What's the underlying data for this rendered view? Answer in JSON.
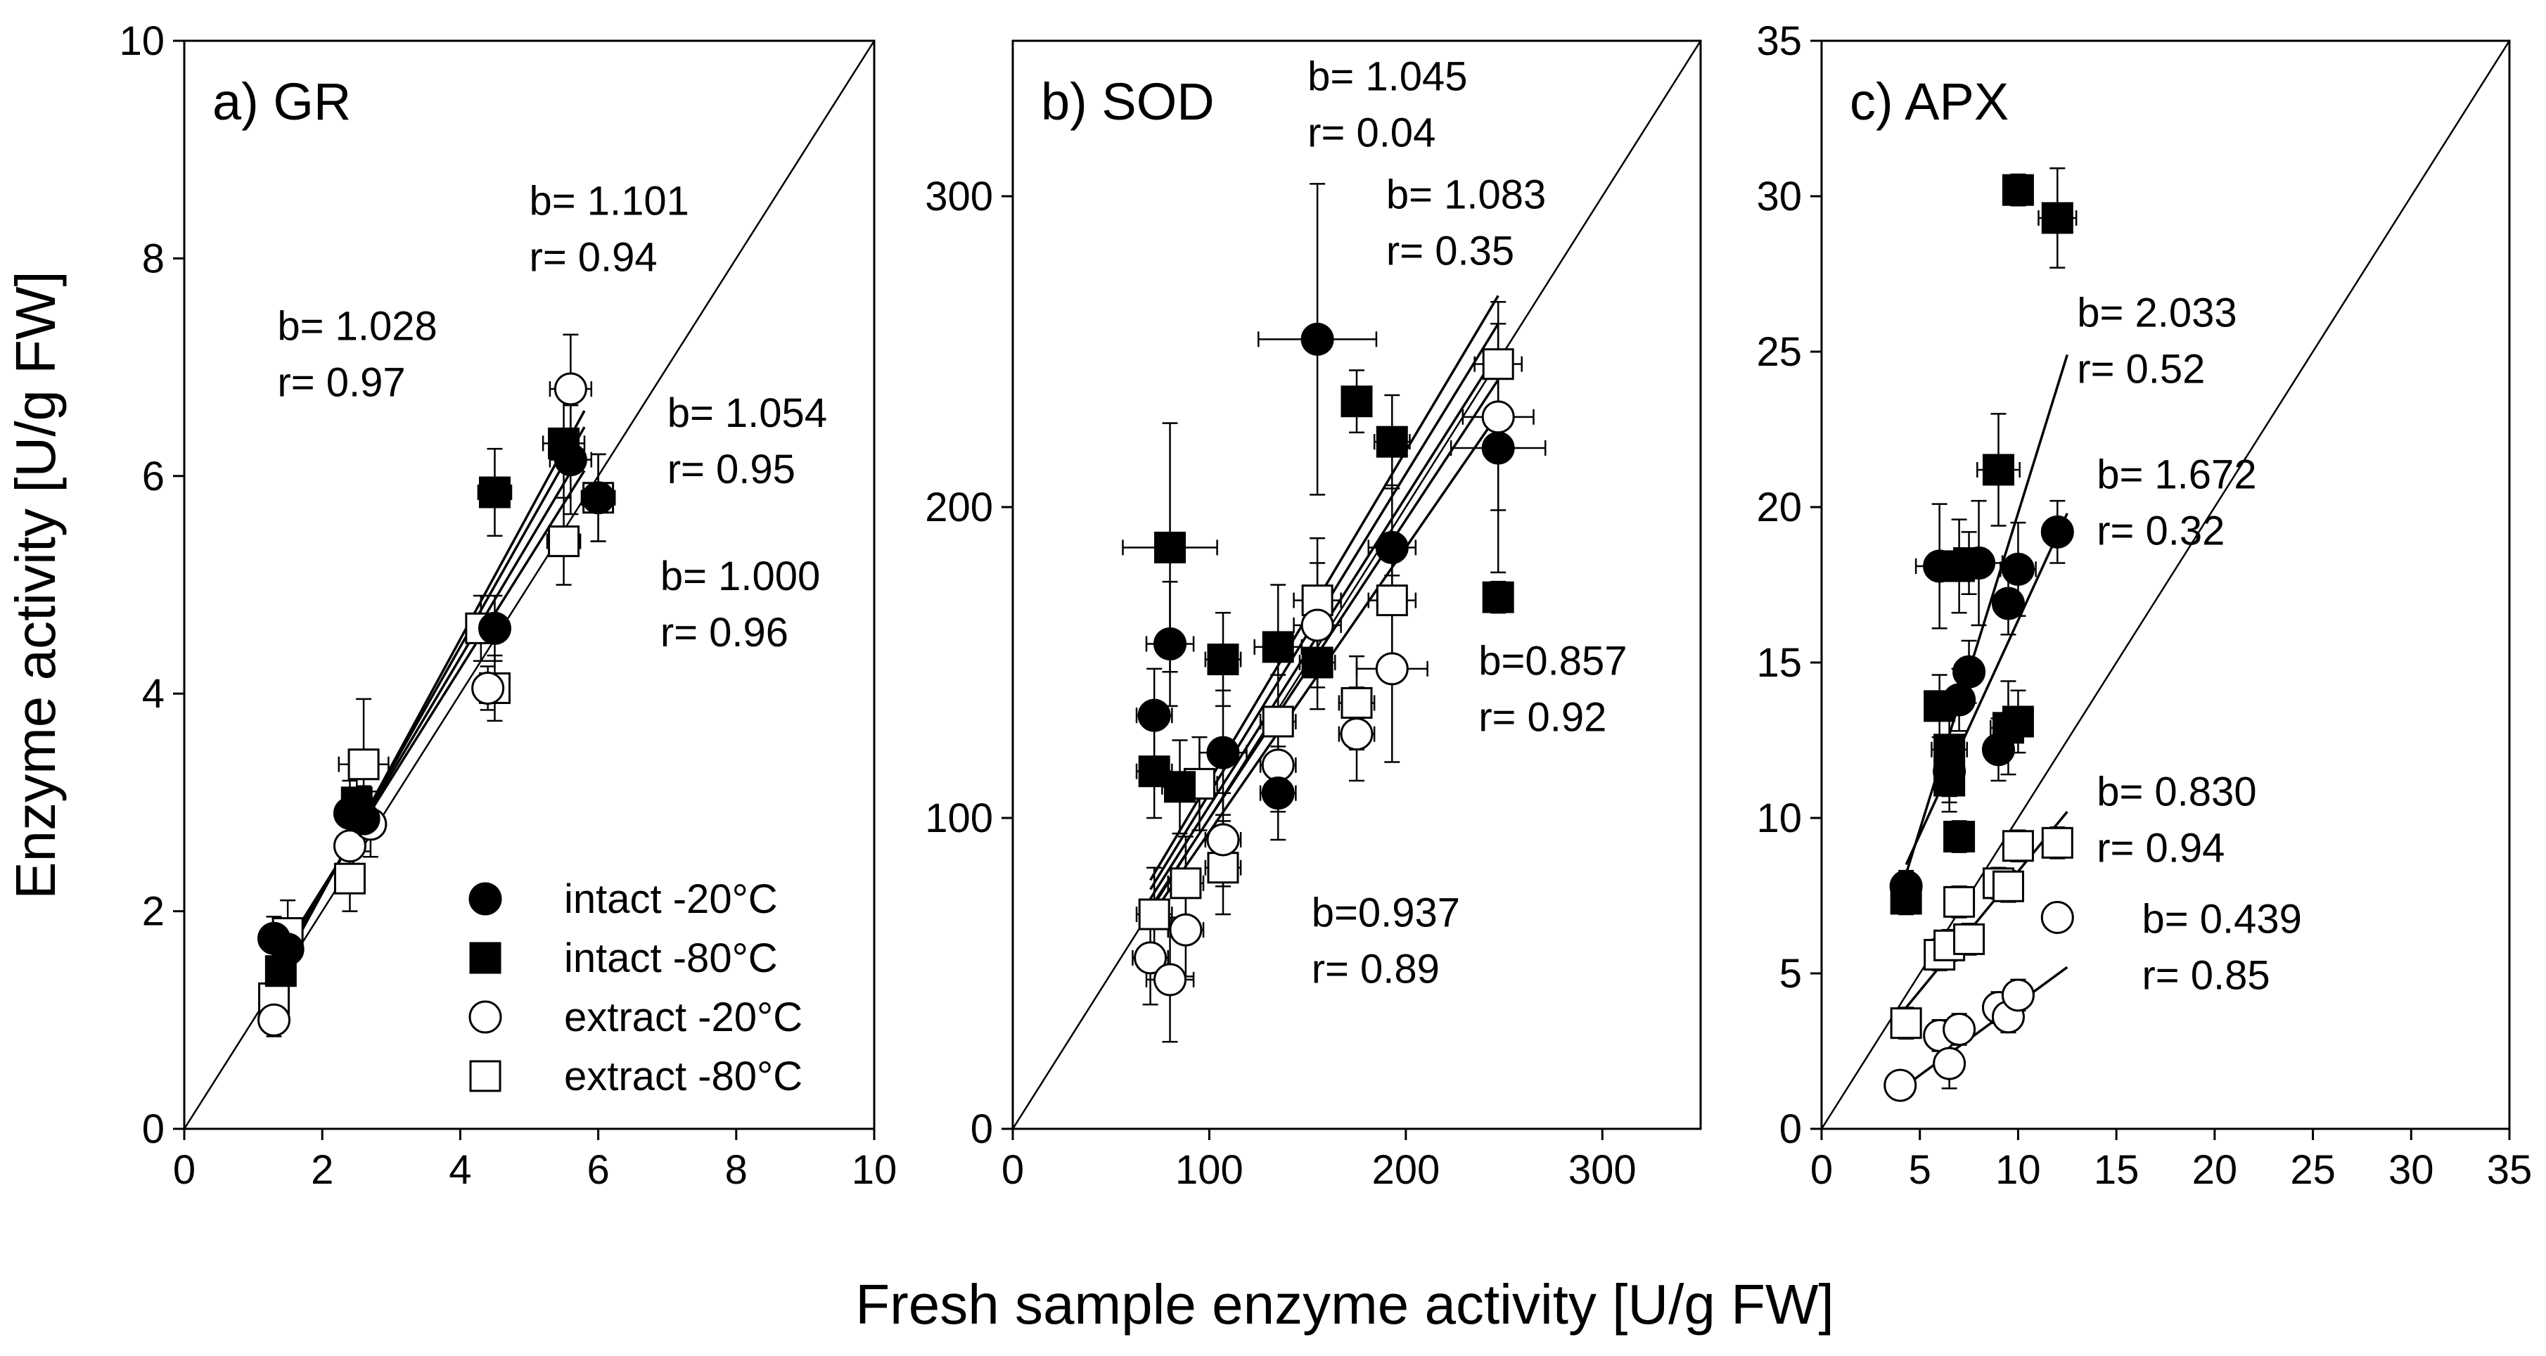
{
  "figure": {
    "y_axis_title": "Enzyme activity [U/g FW]",
    "x_axis_title": "Fresh sample enzyme activity [U/g FW]"
  },
  "legend": {
    "items": [
      {
        "label": "intact -20°C",
        "marker": "filled-circle"
      },
      {
        "label": "intact -80°C",
        "marker": "filled-square"
      },
      {
        "label": "extract -20°C",
        "marker": "open-circle"
      },
      {
        "label": "extract -80°C",
        "marker": "open-square"
      }
    ]
  },
  "colors": {
    "ink": "#000000",
    "open_fill": "#ffffff"
  },
  "chart_data": [
    {
      "type": "scatter",
      "title": "a) GR",
      "xlim": [
        0,
        10
      ],
      "ylim": [
        0,
        10
      ],
      "xticks": [
        0,
        2,
        4,
        6,
        8,
        10
      ],
      "yticks": [
        0,
        2,
        4,
        6,
        8,
        10
      ],
      "identity_line": true,
      "series": [
        {
          "name": "intact -20°C",
          "marker": "filled-circle",
          "points": [
            [
              1.3,
              1.75,
              0.2
            ],
            [
              1.5,
              1.65,
              0.2
            ],
            [
              2.4,
              2.9,
              0.3
            ],
            [
              2.6,
              2.85,
              0.3
            ],
            [
              4.5,
              4.6,
              0.3
            ],
            [
              5.6,
              6.15,
              0.5
            ],
            [
              6.0,
              5.8,
              0.4
            ]
          ]
        },
        {
          "name": "intact -80°C",
          "marker": "filled-square",
          "points": [
            [
              1.4,
              1.45,
              0.2
            ],
            [
              2.5,
              3.0,
              0.3
            ],
            [
              4.5,
              5.85,
              0.4
            ],
            [
              5.5,
              6.3,
              0.5
            ]
          ]
        },
        {
          "name": "extract -20°C",
          "marker": "open-circle",
          "points": [
            [
              1.3,
              1.0,
              0.15
            ],
            [
              2.4,
              2.6,
              0.3
            ],
            [
              2.7,
              2.8,
              0.3
            ],
            [
              4.4,
              4.05,
              0.2
            ],
            [
              5.6,
              6.8,
              0.5
            ]
          ]
        },
        {
          "name": "extract -80°C",
          "marker": "open-square",
          "points": [
            [
              1.3,
              1.2,
              0.2
            ],
            [
              1.5,
              1.8,
              0.3
            ],
            [
              2.4,
              2.3,
              0.3
            ],
            [
              2.6,
              3.35,
              0.6
            ],
            [
              4.3,
              4.6,
              0.3
            ],
            [
              4.5,
              4.05,
              0.3
            ],
            [
              5.5,
              5.4,
              0.4
            ],
            [
              6.0,
              5.8,
              0.4
            ]
          ]
        }
      ],
      "regression_lines": [
        {
          "x": [
            1.3,
            5.8
          ],
          "y": [
            1.35,
            6.6
          ]
        },
        {
          "x": [
            1.3,
            5.8
          ],
          "y": [
            1.4,
            6.45
          ]
        },
        {
          "x": [
            1.3,
            5.8
          ],
          "y": [
            1.45,
            6.25
          ]
        },
        {
          "x": [
            1.3,
            5.8
          ],
          "y": [
            1.5,
            6.05
          ]
        }
      ],
      "annotations": [
        {
          "b": "b= 1.028",
          "r": "r= 0.97",
          "pos": [
            1.35,
            7.25
          ]
        },
        {
          "b": "b= 1.101",
          "r": "r= 0.94",
          "pos": [
            5.0,
            8.4
          ]
        },
        {
          "b": "b= 1.054",
          "r": "r= 0.95",
          "pos": [
            7.0,
            6.45
          ]
        },
        {
          "b": "b= 1.000",
          "r": "r= 0.96",
          "pos": [
            6.9,
            4.95
          ]
        }
      ]
    },
    {
      "type": "scatter",
      "title": "b) SOD",
      "xlim": [
        0,
        350
      ],
      "ylim": [
        0,
        350
      ],
      "xticks": [
        0,
        100,
        200,
        300
      ],
      "yticks": [
        0,
        100,
        200,
        300
      ],
      "identity_line": true,
      "series": [
        {
          "name": "intact -20°C",
          "marker": "filled-circle",
          "points": [
            [
              72,
              133,
              15
            ],
            [
              80,
              156,
              20
            ],
            [
              107,
              121,
              20
            ],
            [
              135,
              108,
              15
            ],
            [
              155,
              254,
              50
            ],
            [
              193,
              187,
              20
            ],
            [
              247,
              219,
              40
            ]
          ]
        },
        {
          "name": "intact -80°C",
          "marker": "filled-square",
          "points": [
            [
              72,
              115,
              15
            ],
            [
              80,
              187,
              40
            ],
            [
              85,
              110,
              15
            ],
            [
              107,
              151,
              15
            ],
            [
              135,
              155,
              20
            ],
            [
              155,
              150,
              15
            ],
            [
              175,
              234,
              10
            ],
            [
              193,
              221,
              15
            ],
            [
              247,
              171,
              5
            ]
          ]
        },
        {
          "name": "extract -20°C",
          "marker": "open-circle",
          "points": [
            [
              70,
              55,
              15
            ],
            [
              80,
              48,
              20
            ],
            [
              88,
              64,
              15
            ],
            [
              107,
              93,
              15
            ],
            [
              135,
              117,
              15
            ],
            [
              155,
              162,
              20
            ],
            [
              175,
              127,
              15
            ],
            [
              193,
              148,
              30
            ],
            [
              247,
              229,
              30
            ]
          ]
        },
        {
          "name": "extract -80°C",
          "marker": "open-square",
          "points": [
            [
              72,
              69,
              15
            ],
            [
              88,
              79,
              15
            ],
            [
              95,
              111,
              15
            ],
            [
              107,
              84,
              15
            ],
            [
              135,
              131,
              15
            ],
            [
              155,
              170,
              20
            ],
            [
              175,
              137,
              15
            ],
            [
              193,
              170,
              20
            ],
            [
              247,
              246,
              20
            ]
          ]
        }
      ],
      "regression_lines": [
        {
          "x": [
            70,
            247
          ],
          "y": [
            80,
            268
          ]
        },
        {
          "x": [
            70,
            247
          ],
          "y": [
            77,
            259
          ]
        },
        {
          "x": [
            70,
            247
          ],
          "y": [
            74,
            250
          ]
        },
        {
          "x": [
            70,
            247
          ],
          "y": [
            71,
            241
          ]
        },
        {
          "x": [
            70,
            247
          ],
          "y": [
            68,
            230
          ]
        }
      ],
      "annotations": [
        {
          "b": "b= 1.045",
          "r": "r= 0.04",
          "pos": [
            150,
            334
          ]
        },
        {
          "b": "b= 1.083",
          "r": "r= 0.35",
          "pos": [
            190,
            296
          ]
        },
        {
          "b": "b=0.857",
          "r": "r= 0.92",
          "pos": [
            237,
            146
          ]
        },
        {
          "b": "b=0.937",
          "r": "r= 0.89",
          "pos": [
            152,
            65
          ]
        }
      ]
    },
    {
      "type": "scatter",
      "title": "c) APX",
      "xlim": [
        0,
        35
      ],
      "ylim": [
        0,
        35
      ],
      "xticks": [
        0,
        5,
        10,
        15,
        20,
        25,
        30,
        35
      ],
      "yticks": [
        0,
        5,
        10,
        15,
        20,
        25,
        30,
        35
      ],
      "identity_line": true,
      "series": [
        {
          "name": "intact -20°C",
          "marker": "filled-circle",
          "points": [
            [
              4.3,
              7.8,
              0.5
            ],
            [
              6.0,
              18.1,
              2.0
            ],
            [
              6.5,
              11.5,
              1.0
            ],
            [
              7.0,
              13.8,
              1.0
            ],
            [
              7.5,
              14.7,
              1.0
            ],
            [
              8.0,
              18.2,
              2.0
            ],
            [
              9.0,
              12.2,
              1.0
            ],
            [
              9.5,
              16.9,
              1.0
            ],
            [
              10.0,
              18.0,
              1.5
            ],
            [
              12.0,
              19.2,
              1.0
            ]
          ]
        },
        {
          "name": "intact -80°C",
          "marker": "filled-square",
          "points": [
            [
              4.3,
              7.4,
              0.5
            ],
            [
              6.0,
              13.6,
              1.0
            ],
            [
              6.5,
              12.2,
              1.5
            ],
            [
              6.5,
              11.2,
              1.0
            ],
            [
              7.0,
              9.4,
              0.5
            ],
            [
              7.0,
              18.1,
              1.5
            ],
            [
              7.5,
              18.2,
              1.0
            ],
            [
              9.0,
              21.2,
              1.8
            ],
            [
              9.5,
              12.9,
              1.5
            ],
            [
              10.0,
              13.1,
              1.0
            ],
            [
              10.0,
              30.2,
              0.5
            ],
            [
              12.0,
              29.3,
              1.6
            ]
          ]
        },
        {
          "name": "extract -20°C",
          "marker": "open-circle",
          "points": [
            [
              4.0,
              1.4,
              0.2
            ],
            [
              6.0,
              3.0,
              0.5
            ],
            [
              6.5,
              2.1,
              0.8
            ],
            [
              7.0,
              3.2,
              0.5
            ],
            [
              9.0,
              3.9,
              0.5
            ],
            [
              9.5,
              3.6,
              0.5
            ],
            [
              10.0,
              4.3,
              0.5
            ],
            [
              12.0,
              6.8,
              0.4
            ]
          ]
        },
        {
          "name": "extract -80°C",
          "marker": "open-square",
          "points": [
            [
              4.3,
              3.4,
              0.5
            ],
            [
              6.0,
              5.6,
              0.5
            ],
            [
              6.5,
              5.9,
              0.5
            ],
            [
              7.0,
              7.3,
              0.5
            ],
            [
              7.5,
              6.1,
              0.5
            ],
            [
              9.0,
              7.9,
              0.5
            ],
            [
              9.5,
              7.8,
              0.5
            ],
            [
              10.0,
              9.1,
              0.5
            ],
            [
              12.0,
              9.2,
              0.5
            ]
          ]
        }
      ],
      "regression_lines": [
        {
          "x": [
            4.3,
            12.5
          ],
          "y": [
            8.2,
            24.9
          ]
        },
        {
          "x": [
            4.3,
            12.5
          ],
          "y": [
            8.5,
            19.8
          ]
        },
        {
          "x": [
            4.3,
            12.5
          ],
          "y": [
            3.9,
            10.2
          ]
        },
        {
          "x": [
            4.3,
            12.5
          ],
          "y": [
            1.4,
            5.2
          ]
        }
      ],
      "annotations": [
        {
          "b": "b= 2.033",
          "r": "r= 0.52",
          "pos": [
            13.0,
            25.8
          ]
        },
        {
          "b": "b= 1.672",
          "r": "r= 0.32",
          "pos": [
            14.0,
            20.6
          ]
        },
        {
          "b": "b= 0.830",
          "r": "r= 0.94",
          "pos": [
            14.0,
            10.4
          ]
        },
        {
          "b": "b= 0.439",
          "r": "r= 0.85",
          "pos": [
            16.3,
            6.3
          ]
        }
      ]
    }
  ]
}
